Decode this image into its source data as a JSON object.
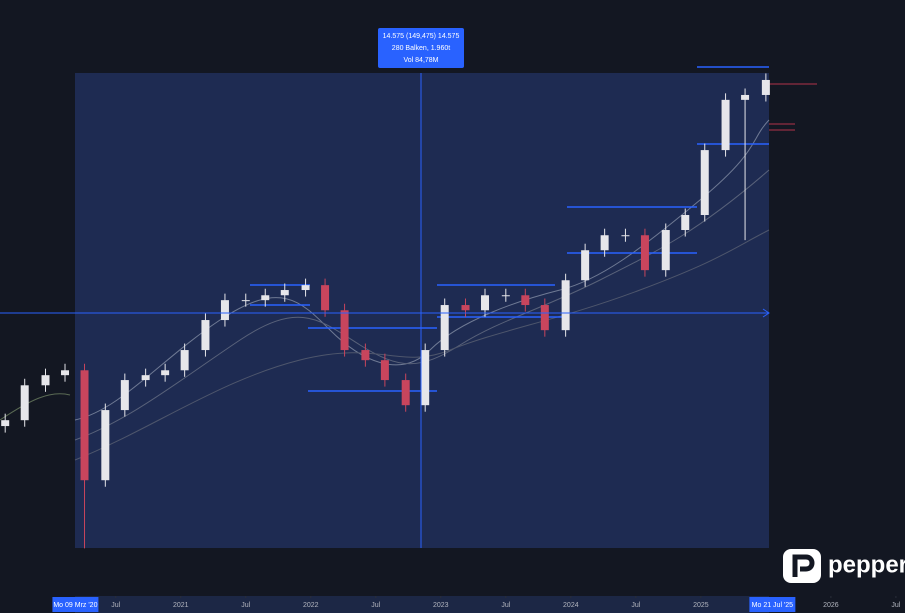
{
  "chart_data": {
    "type": "candlestick",
    "measure": [
      "14.575 (149,475) 14.575",
      "280 Balken, 1.960t",
      "Vol 84,78M"
    ],
    "logo": "peppers",
    "x": [
      2019.65,
      2019.8,
      2019.96,
      2020.11,
      2020.26,
      2020.42,
      2020.57,
      2020.73,
      2020.88,
      2021.03,
      2021.19,
      2021.34,
      2021.5,
      2021.65,
      2021.8,
      2021.96,
      2022.11,
      2022.26,
      2022.42,
      2022.57,
      2022.73,
      2022.88,
      2023.03,
      2023.19,
      2023.34,
      2023.5,
      2023.65,
      2023.8,
      2023.96,
      2024.11,
      2024.26,
      2024.42,
      2024.57,
      2024.73,
      2024.88,
      2025.03,
      2025.19,
      2025.34,
      2025.5
    ],
    "opens": [
      13500,
      13680,
      14750,
      15060,
      15210,
      11840,
      13990,
      14910,
      15060,
      15210,
      15830,
      16750,
      17360,
      17360,
      17510,
      17670,
      17820,
      17050,
      15830,
      15520,
      14910,
      14140,
      15830,
      17210,
      17050,
      17510,
      17510,
      17210,
      16440,
      17970,
      18890,
      19350,
      19350,
      18280,
      19510,
      19970,
      21960,
      23500,
      23650
    ],
    "highs": [
      13880,
      14950,
      15260,
      15410,
      15410,
      14190,
      15110,
      15260,
      15410,
      16030,
      16950,
      17560,
      17560,
      17710,
      17870,
      18020,
      18020,
      17250,
      16030,
      15720,
      15110,
      16030,
      17410,
      17410,
      17710,
      17710,
      17710,
      17410,
      18170,
      19090,
      19550,
      19550,
      19550,
      19710,
      20170,
      22160,
      23700,
      23850,
      24310
    ],
    "lows": [
      13300,
      13480,
      14550,
      14860,
      9750,
      11640,
      13790,
      14710,
      14860,
      15010,
      15630,
      16550,
      17160,
      17160,
      17310,
      17470,
      16850,
      15630,
      15320,
      14710,
      13940,
      13940,
      15630,
      16850,
      16850,
      17310,
      17010,
      16240,
      16240,
      17770,
      18690,
      19150,
      18080,
      18080,
      19310,
      19770,
      21760,
      19200,
      23450
    ],
    "closes": [
      13680,
      14750,
      15060,
      15210,
      11840,
      13990,
      14910,
      15060,
      15210,
      15830,
      16750,
      17360,
      17360,
      17510,
      17670,
      17820,
      17050,
      15830,
      15520,
      14910,
      14140,
      15830,
      17210,
      17050,
      17510,
      17510,
      17210,
      16440,
      17970,
      18890,
      19350,
      19350,
      18280,
      19510,
      19970,
      21960,
      23500,
      23650,
      24110
    ],
    "up_color": "#e6e6ea",
    "down_color": "#c8455d",
    "xlim": [
      2019.61,
      2026.57
    ],
    "ylim": [
      7800,
      26500
    ],
    "xticks": [
      {
        "value": 2020.19,
        "label": "Mo 09 Mrz '20"
      },
      {
        "value": 2020.5,
        "label": "Jul"
      },
      2021,
      {
        "value": 2021.5,
        "label": "Jul"
      },
      2022,
      {
        "value": 2022.5,
        "label": "Jul"
      },
      2023,
      {
        "value": 2023.5,
        "label": "Jul"
      },
      2024,
      {
        "value": 2024.5,
        "label": "Jul"
      },
      2025,
      {
        "value": 2025.55,
        "label": "Mo 21 Jul '25"
      },
      2026,
      {
        "value": 2026.5,
        "label": "Jul"
      }
    ]
  }
}
